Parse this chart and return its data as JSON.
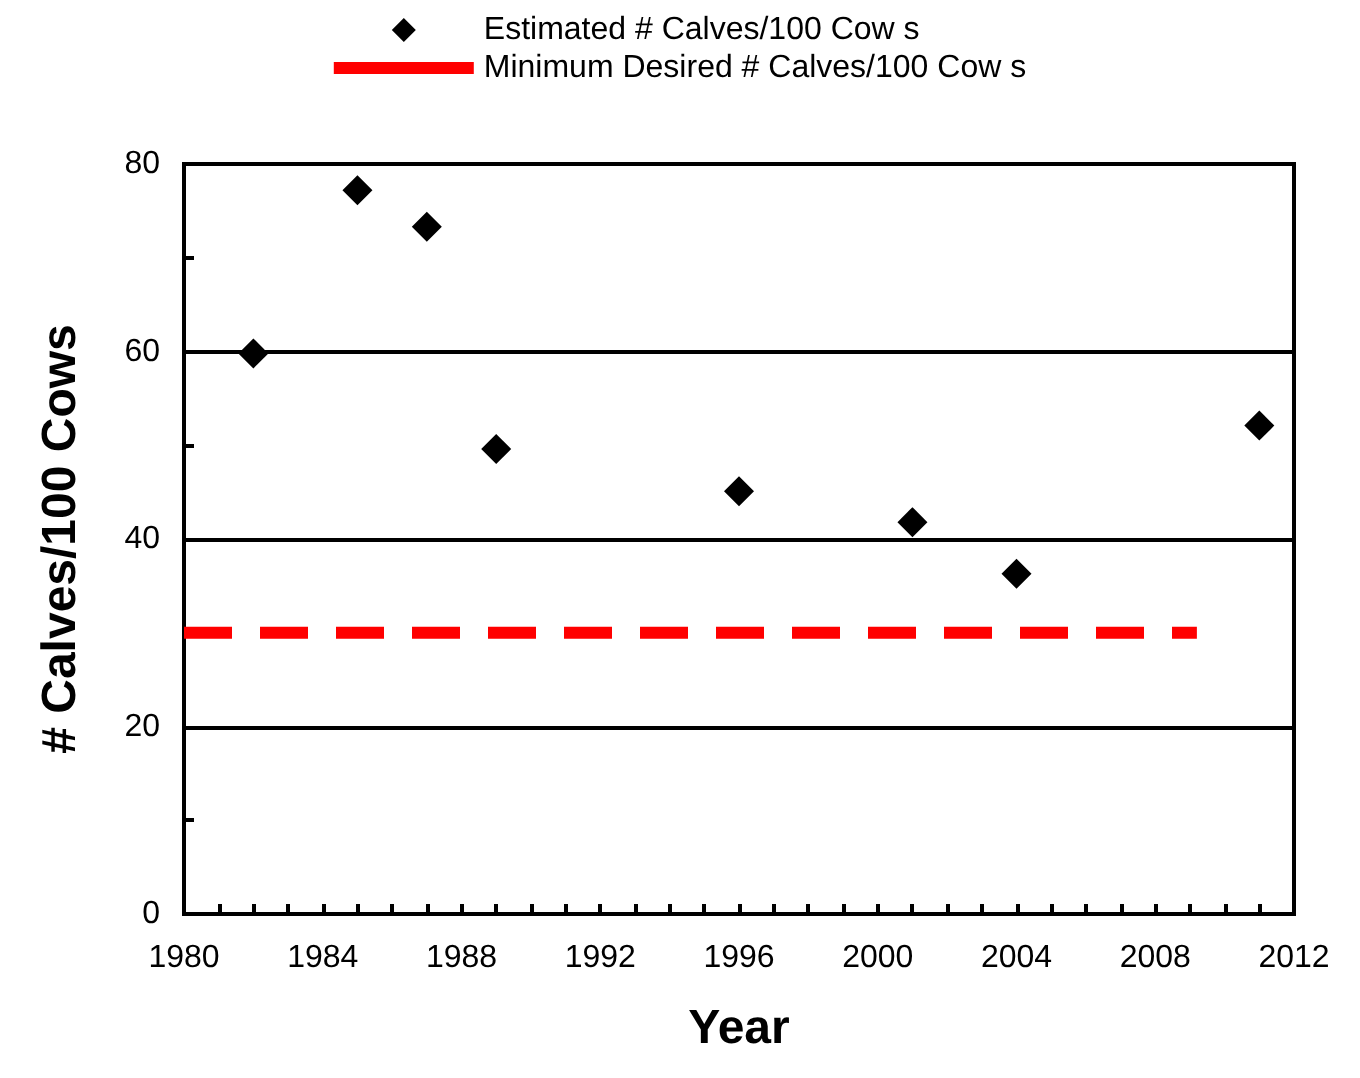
{
  "chart_data": {
    "type": "scatter",
    "xlabel": "Year",
    "ylabel": "# Calves/100 Cows",
    "x": [
      1982,
      1985,
      1987,
      1989,
      1996,
      2001,
      2004,
      2011
    ],
    "series": [
      {
        "name": "Estimated # Calves/100 Cow s",
        "color": "#000000",
        "marker": "diamond",
        "values": [
          59.8,
          77.2,
          73.3,
          49.6,
          45.1,
          41.8,
          36.3,
          52.1
        ]
      },
      {
        "name": "Minimum Desired # Calves/100 Cow s",
        "type": "line",
        "color": "#ff0000",
        "line_style": "dashed",
        "marker": "none",
        "x": [
          1980,
          2009.2
        ],
        "values": [
          30,
          30
        ]
      }
    ],
    "xlim": [
      1980,
      2012
    ],
    "xticks": [
      1980,
      {
        "value": 1981,
        "label": null
      },
      {
        "value": 1982,
        "label": null
      },
      {
        "value": 1983,
        "label": null
      },
      1984,
      {
        "value": 1985,
        "label": null
      },
      {
        "value": 1986,
        "label": null
      },
      {
        "value": 1987,
        "label": null
      },
      1988,
      {
        "value": 1989,
        "label": null
      },
      {
        "value": 1990,
        "label": null
      },
      {
        "value": 1991,
        "label": null
      },
      1992,
      {
        "value": 1993,
        "label": null
      },
      {
        "value": 1994,
        "label": null
      },
      {
        "value": 1995,
        "label": null
      },
      1996,
      {
        "value": 1997,
        "label": null
      },
      {
        "value": 1998,
        "label": null
      },
      {
        "value": 1999,
        "label": null
      },
      2000,
      {
        "value": 2001,
        "label": null
      },
      {
        "value": 2002,
        "label": null
      },
      {
        "value": 2003,
        "label": null
      },
      2004,
      {
        "value": 2005,
        "label": null
      },
      {
        "value": 2006,
        "label": null
      },
      {
        "value": 2007,
        "label": null
      },
      2008,
      {
        "value": 2009,
        "label": null
      },
      {
        "value": 2010,
        "label": null
      },
      {
        "value": 2011,
        "label": null
      },
      2012
    ],
    "ylim": [
      0,
      80
    ],
    "yticks": [
      0,
      {
        "value": 10,
        "label": null
      },
      20,
      {
        "value": 30,
        "label": null
      },
      40,
      {
        "value": 50,
        "label": null
      },
      60,
      {
        "value": 70,
        "label": null
      },
      80
    ],
    "grid": "y",
    "legend": "top"
  }
}
